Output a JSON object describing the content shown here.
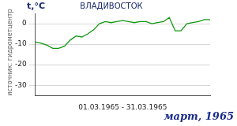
{
  "chart_data": {
    "type": "line",
    "title": "ВЛАДИВОСТОК",
    "subtitle": "март, 1965",
    "ylabel": "t,°C",
    "xlabel": "01.03.1965 - 31.03.1965",
    "annotations": [
      "источник: гидрометцентр"
    ],
    "x": [
      1,
      2,
      3,
      4,
      5,
      6,
      7,
      8,
      9,
      10,
      11,
      12,
      13,
      14,
      15,
      16,
      17,
      18,
      19,
      20,
      21,
      22,
      23,
      24,
      25,
      26,
      27,
      28,
      29,
      30,
      31
    ],
    "series": [
      {
        "name": "ВЛАДИВОСТОК",
        "color": "#119911",
        "values": [
          -9,
          -9.5,
          -10.5,
          -12,
          -12,
          -11,
          -8,
          -6,
          -6.5,
          -5,
          -3,
          0,
          1,
          0.5,
          1,
          1.5,
          1,
          0.5,
          1,
          1,
          0,
          0.5,
          1,
          3,
          -3.5,
          -3.5,
          0,
          0.5,
          1,
          2,
          2
        ]
      }
    ],
    "xlim": [
      1,
      31
    ],
    "ylim": [
      -35,
      5
    ],
    "yticks": [
      -30,
      -20,
      -10,
      0
    ],
    "grid": true,
    "tick_labels": "y"
  }
}
